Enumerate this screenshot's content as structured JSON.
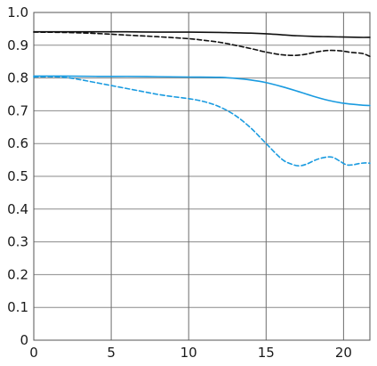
{
  "chart_data": {
    "type": "line",
    "title": "",
    "xlabel": "",
    "ylabel": "",
    "xlim": [
      0,
      21.7
    ],
    "ylim": [
      0,
      1.0
    ],
    "x_ticks": [
      0,
      5,
      10,
      15,
      20
    ],
    "y_ticks": [
      0,
      0.1,
      0.2,
      0.3,
      0.4,
      0.5,
      0.6,
      0.7,
      0.8,
      0.9,
      1.0
    ],
    "x_tick_labels": [
      "0",
      "5",
      "10",
      "15",
      "20"
    ],
    "y_tick_labels": [
      "0",
      "0.1",
      "0.2",
      "0.3",
      "0.4",
      "0.5",
      "0.6",
      "0.7",
      "0.8",
      "0.9",
      "1.0"
    ],
    "grid": "vertical-at-x-ticks-and-horizontal-at-y-ticks",
    "series": [
      {
        "color": "#111111",
        "dash": "solid",
        "points": [
          [
            0,
            0.941
          ],
          [
            2,
            0.941
          ],
          [
            4,
            0.941
          ],
          [
            6,
            0.941
          ],
          [
            8,
            0.94
          ],
          [
            10,
            0.94
          ],
          [
            12,
            0.939
          ],
          [
            13,
            0.938
          ],
          [
            14,
            0.937
          ],
          [
            15,
            0.935
          ],
          [
            16,
            0.932
          ],
          [
            17,
            0.929
          ],
          [
            18,
            0.927
          ],
          [
            19,
            0.926
          ],
          [
            20,
            0.925
          ],
          [
            21,
            0.924
          ],
          [
            21.7,
            0.924
          ]
        ]
      },
      {
        "color": "#111111",
        "dash": "dashed",
        "points": [
          [
            0,
            0.94
          ],
          [
            2,
            0.939
          ],
          [
            4,
            0.936
          ],
          [
            6,
            0.931
          ],
          [
            8,
            0.926
          ],
          [
            10,
            0.92
          ],
          [
            11,
            0.915
          ],
          [
            12,
            0.909
          ],
          [
            13,
            0.9
          ],
          [
            14,
            0.89
          ],
          [
            15,
            0.879
          ],
          [
            16,
            0.871
          ],
          [
            16.8,
            0.869
          ],
          [
            17.5,
            0.872
          ],
          [
            18.2,
            0.879
          ],
          [
            19,
            0.884
          ],
          [
            19.8,
            0.883
          ],
          [
            20.5,
            0.878
          ],
          [
            21.2,
            0.875
          ],
          [
            21.7,
            0.866
          ]
        ]
      },
      {
        "color": "#1a9be0",
        "dash": "solid",
        "points": [
          [
            0,
            0.806
          ],
          [
            2,
            0.806
          ],
          [
            4,
            0.805
          ],
          [
            6,
            0.805
          ],
          [
            8,
            0.804
          ],
          [
            10,
            0.803
          ],
          [
            12,
            0.802
          ],
          [
            13,
            0.799
          ],
          [
            14,
            0.794
          ],
          [
            15,
            0.786
          ],
          [
            16,
            0.774
          ],
          [
            17,
            0.76
          ],
          [
            18,
            0.745
          ],
          [
            19,
            0.732
          ],
          [
            20,
            0.723
          ],
          [
            21,
            0.718
          ],
          [
            21.7,
            0.716
          ]
        ]
      },
      {
        "color": "#1a9be0",
        "dash": "dashed",
        "points": [
          [
            0,
            0.803
          ],
          [
            1,
            0.804
          ],
          [
            2,
            0.802
          ],
          [
            3,
            0.795
          ],
          [
            4,
            0.786
          ],
          [
            5,
            0.777
          ],
          [
            6,
            0.768
          ],
          [
            7,
            0.759
          ],
          [
            8,
            0.75
          ],
          [
            9,
            0.743
          ],
          [
            10,
            0.737
          ],
          [
            11,
            0.728
          ],
          [
            12,
            0.712
          ],
          [
            13,
            0.686
          ],
          [
            14,
            0.648
          ],
          [
            15,
            0.6
          ],
          [
            16,
            0.553
          ],
          [
            16.6,
            0.538
          ],
          [
            17.1,
            0.532
          ],
          [
            17.6,
            0.537
          ],
          [
            18.2,
            0.55
          ],
          [
            18.8,
            0.558
          ],
          [
            19.3,
            0.558
          ],
          [
            19.8,
            0.545
          ],
          [
            20.2,
            0.535
          ],
          [
            20.6,
            0.535
          ],
          [
            21,
            0.539
          ],
          [
            21.4,
            0.541
          ],
          [
            21.7,
            0.54
          ]
        ]
      }
    ]
  }
}
